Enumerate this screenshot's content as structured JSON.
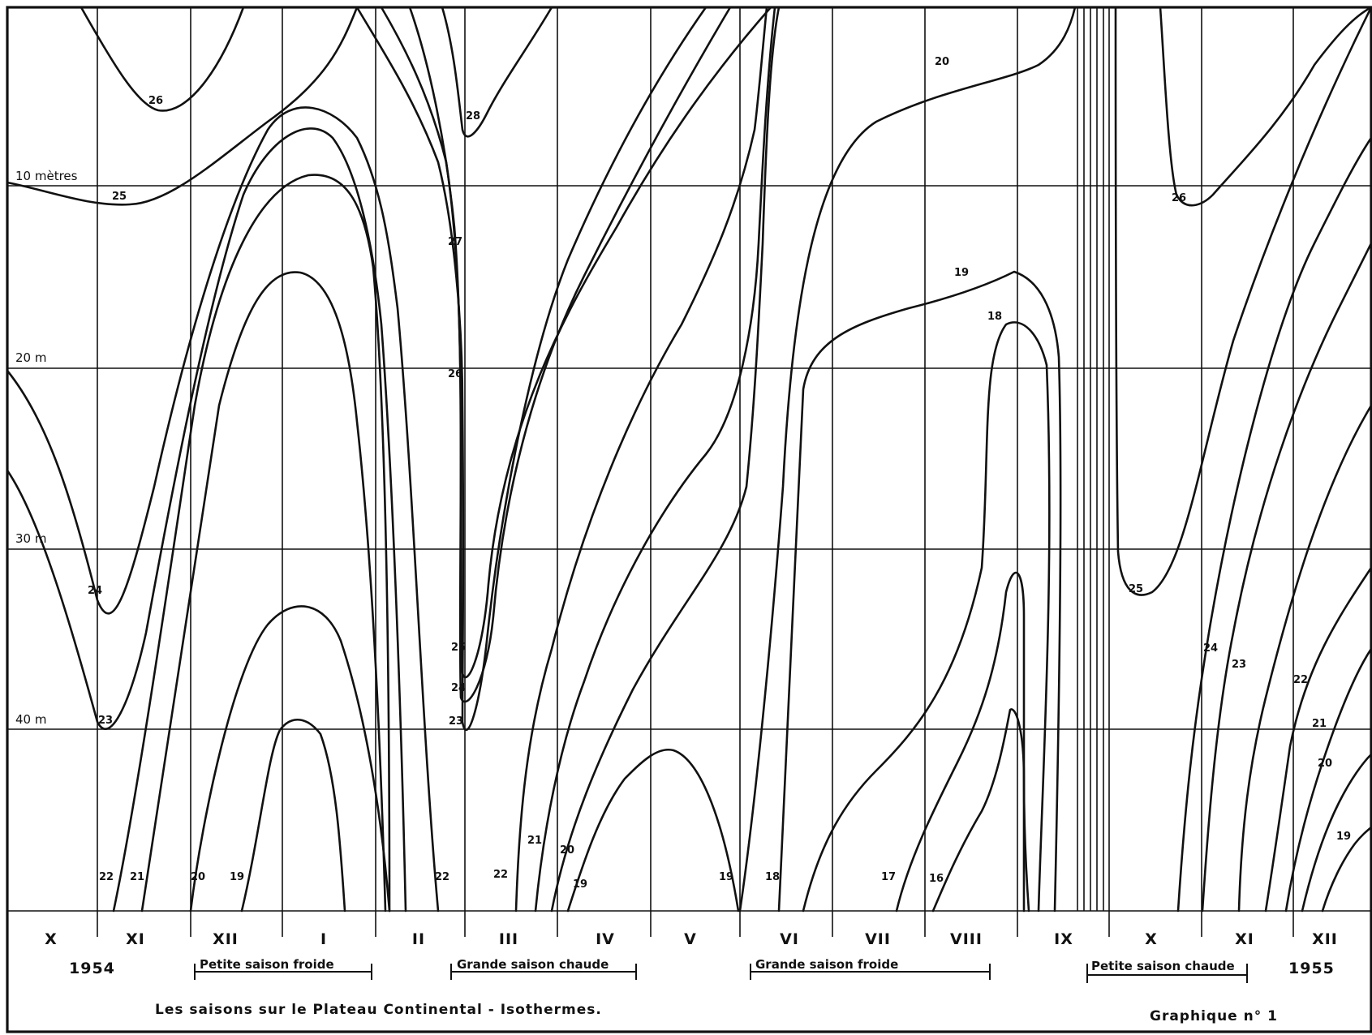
{
  "chart_data": {
    "type": "line",
    "title": "Les saisons sur le Plateau Continental - Isothermes.",
    "figure_label": "Graphique n° 1",
    "x_axis": {
      "months": [
        "X",
        "XI",
        "XII",
        "I",
        "II",
        "III",
        "IV",
        "V",
        "VI",
        "VII",
        "VIII",
        "IX",
        "X",
        "XI",
        "XII"
      ],
      "years": [
        "1954",
        "1955"
      ],
      "range": [
        "1954-X",
        "1955-XII"
      ]
    },
    "y_axis": {
      "depth_labels": [
        "10 mètres",
        "20 m",
        "30 m",
        "40 m"
      ],
      "range_m": [
        0,
        50
      ],
      "inverted": true
    },
    "seasons": [
      {
        "label": "Petite saison froide",
        "from": "XII",
        "to": "I"
      },
      {
        "label": "Grande saison chaude",
        "from": "III",
        "to": "IV"
      },
      {
        "label": "Grande saison froide",
        "from": "VI",
        "to": "VIII"
      },
      {
        "label": "Petite saison chaude",
        "from": "X",
        "to": "XI"
      }
    ],
    "isotherm_values": [
      "16",
      "17",
      "18",
      "19",
      "20",
      "21",
      "22",
      "23",
      "24",
      "25",
      "26",
      "27",
      "28"
    ],
    "grid": true,
    "colors": {
      "ink": "#111111",
      "background": "#ffffff"
    }
  }
}
